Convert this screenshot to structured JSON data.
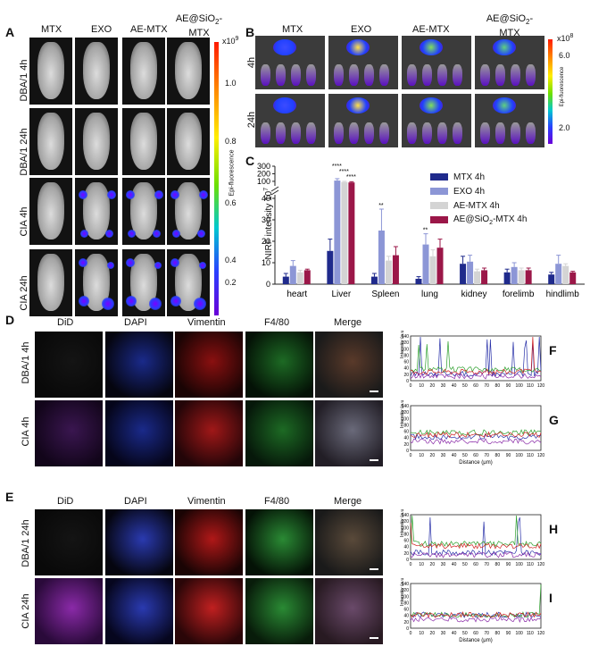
{
  "panelA": {
    "letter": "A",
    "cols": [
      "MTX",
      "EXO",
      "AE-MTX"
    ],
    "col4_line1": "AE@SiO",
    "col4_sub": "2",
    "col4_suffix": "-",
    "col4_line2": "MTX",
    "rows": [
      "DBA/1 4h",
      "DBA/1 24h",
      "CIA 4h",
      "CIA 24h"
    ],
    "colorbar": {
      "exp": "x10",
      "exp_sup": "9",
      "ticks": [
        "1.0",
        "0.8",
        "0.6",
        "0.4",
        "0.2"
      ],
      "label": "Epi-fluorescence"
    }
  },
  "panelB": {
    "letter": "B",
    "cols": [
      "MTX",
      "EXO",
      "AE-MTX"
    ],
    "col4_line1": "AE@SiO",
    "col4_sub": "2",
    "col4_suffix": "-",
    "col4_line2": "MTX",
    "rows": [
      "4h",
      "24h"
    ],
    "colorbar": {
      "exp": "x10",
      "exp_sup": "8",
      "ticks": [
        "6.0",
        "2.0"
      ],
      "label": "Epi-fluorescence"
    }
  },
  "panelC": {
    "letter": "C",
    "ylabel_main": "NIRF intensity 10",
    "ylabel_sup": "7",
    "legend": [
      {
        "name": "MTX 4h",
        "color": "#1f2a8c"
      },
      {
        "name": "EXO 4h",
        "color": "#8c96d6"
      },
      {
        "name": "AE-MTX 4h",
        "color": "#d4d4d4"
      },
      {
        "name_main": "AE@SiO",
        "name_sub": "2",
        "name_suffix": "-MTX 4h",
        "color": "#9b1748"
      }
    ],
    "annotations": [
      "****",
      "****",
      "****",
      "**",
      "**"
    ]
  },
  "chart_data": {
    "type": "bar",
    "categories": [
      "heart",
      "Liver",
      "Spleen",
      "lung",
      "kidney",
      "forelimb",
      "hindlimb"
    ],
    "series": [
      {
        "name": "MTX 4h",
        "values": [
          3.5,
          15.5,
          3.5,
          2.5,
          9.5,
          5.5,
          4.5
        ],
        "errors": [
          1.5,
          5.5,
          1.5,
          1.0,
          3.5,
          1.5,
          1.0
        ]
      },
      {
        "name": "EXO 4h",
        "values": [
          8.5,
          110,
          25,
          18.5,
          10.5,
          8,
          9.5
        ],
        "errors": [
          2.5,
          25,
          10,
          5,
          3,
          2,
          4
        ]
      },
      {
        "name": "AE-MTX 4h",
        "values": [
          5.5,
          90,
          11,
          13,
          6,
          6.5,
          8.5
        ],
        "errors": [
          1,
          10,
          2,
          3,
          1,
          1,
          1
        ]
      },
      {
        "name": "AE@SiO2-MTX 4h",
        "values": [
          6.5,
          85,
          13.5,
          17,
          6.5,
          6.5,
          5.5
        ],
        "errors": [
          0.5,
          10,
          4,
          4,
          1,
          1,
          0.5
        ]
      }
    ],
    "y_ticks_lower": [
      0,
      10,
      20,
      30,
      40
    ],
    "y_ticks_upper": [
      100,
      200,
      300
    ],
    "ylim_lower": [
      0,
      40
    ],
    "ylim_upper": [
      40,
      300
    ],
    "axis_break": true,
    "legend_position": "top-right"
  },
  "panelD": {
    "letter": "D",
    "cols": [
      "DiD",
      "DAPI",
      "Vimentin",
      "F4/80",
      "Merge"
    ],
    "rows": [
      "DBA/1 4h",
      "CIA  4h"
    ]
  },
  "panelE": {
    "letter": "E",
    "cols": [
      "DiD",
      "DAPI",
      "Vimentin",
      "F4/80",
      "Merge"
    ],
    "rows": [
      "DBA/1  24h",
      "CIA  24h"
    ]
  },
  "profiles": {
    "ylabel": "Intensity (a.u.)",
    "xlabel": "Distance (μm)",
    "y_ticks": [
      "0",
      "20",
      "40",
      "60",
      "80",
      "100",
      "120",
      "140"
    ],
    "x_ticks": [
      "0",
      "10",
      "20",
      "30",
      "40",
      "50",
      "60",
      "70",
      "80",
      "90",
      "100",
      "110",
      "120"
    ],
    "letters": [
      "F",
      "G",
      "H",
      "I"
    ]
  }
}
